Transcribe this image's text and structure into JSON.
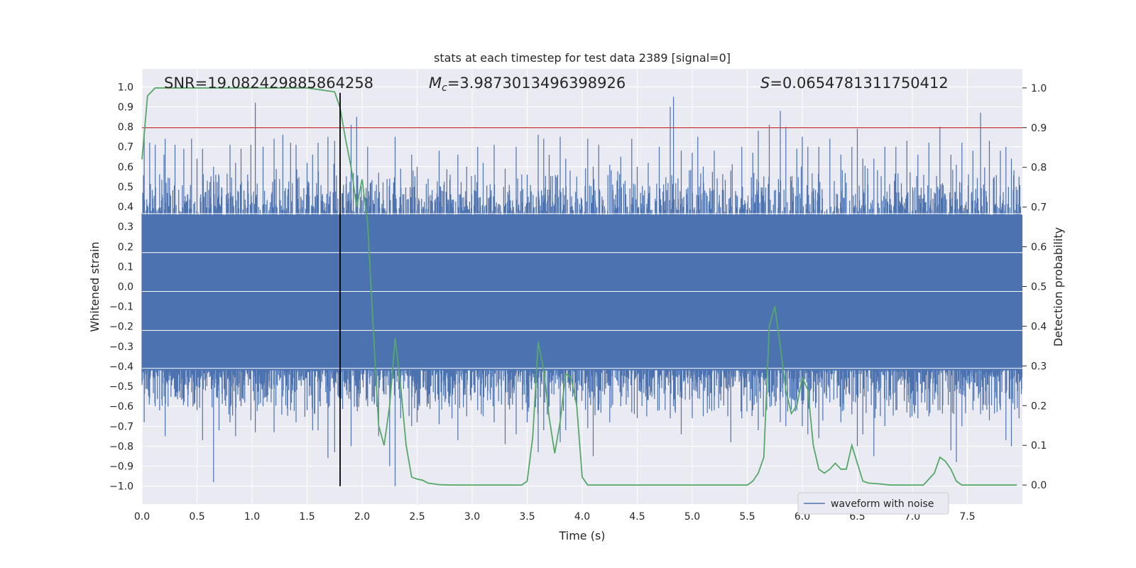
{
  "chart_data": {
    "type": "line",
    "title": "stats at each timestep for test data 2389 [signal=0]",
    "xlabel": "Time (s)",
    "ylabel": "Whitened strain",
    "y2label": "Detection probability",
    "xlim": [
      0.0,
      8.0
    ],
    "ylim": [
      -1.09,
      1.09
    ],
    "y2lim": [
      -0.048,
      1.048
    ],
    "x_ticks": [
      "0.0",
      "0.5",
      "1.0",
      "1.5",
      "2.0",
      "2.5",
      "3.0",
      "3.5",
      "4.0",
      "4.5",
      "5.0",
      "5.5",
      "6.0",
      "6.5",
      "7.0",
      "7.5"
    ],
    "y_ticks": [
      "1.0",
      "0.9",
      "0.8",
      "0.7",
      "0.6",
      "0.5",
      "0.4",
      "0.3",
      "0.2",
      "0.1",
      "0.0",
      "−0.1",
      "−0.2",
      "−0.3",
      "−0.4",
      "−0.5",
      "−0.6",
      "−0.7",
      "−0.8",
      "−0.9",
      "−1.0"
    ],
    "y2_ticks": [
      "1.0",
      "0.9",
      "0.8",
      "0.7",
      "0.6",
      "0.5",
      "0.4",
      "0.3",
      "0.2",
      "0.1",
      "0.0"
    ],
    "grid": true,
    "legend_position": "lower-right",
    "annotations": {
      "snr": "SNR=19.082429885864258",
      "mc_symbol": "M",
      "mc_subscript": "c",
      "mc_value": "=3.9873013496398926",
      "s_symbol": "S",
      "s_value": "=0.0654781311750412"
    },
    "series": [
      {
        "name": "waveform with noise",
        "axis": "left",
        "color": "#4c72b0",
        "envelope_peaks": [
          [
            0.02,
            0.76,
            -0.68
          ],
          [
            0.07,
            0.72,
            -0.56
          ],
          [
            0.12,
            0.71,
            -0.6
          ],
          [
            0.2,
            0.66,
            -0.55
          ],
          [
            0.21,
            0.74,
            -0.75
          ],
          [
            0.3,
            0.71,
            -0.5
          ],
          [
            0.38,
            0.69,
            -0.57
          ],
          [
            0.45,
            0.74,
            -0.53
          ],
          [
            0.5,
            0.64,
            -0.62
          ],
          [
            0.55,
            0.69,
            -0.77
          ],
          [
            0.65,
            0.6,
            -0.98
          ],
          [
            0.7,
            0.55,
            -0.72
          ],
          [
            0.8,
            0.71,
            -0.68
          ],
          [
            0.85,
            0.62,
            -0.75
          ],
          [
            0.9,
            0.69,
            -0.6
          ],
          [
            0.99,
            0.71,
            -0.67
          ],
          [
            1.03,
            0.92,
            -0.73
          ],
          [
            1.1,
            0.7,
            -0.6
          ],
          [
            1.2,
            0.74,
            -0.73
          ],
          [
            1.28,
            0.76,
            -0.55
          ],
          [
            1.35,
            0.72,
            -0.62
          ],
          [
            1.4,
            0.71,
            -0.68
          ],
          [
            1.5,
            0.62,
            -0.62
          ],
          [
            1.55,
            0.66,
            -0.72
          ],
          [
            1.6,
            0.72,
            -0.72
          ],
          [
            1.69,
            0.75,
            -0.86
          ],
          [
            1.75,
            0.73,
            -0.83
          ],
          [
            1.8,
            0.8,
            -0.9
          ],
          [
            1.9,
            0.81,
            -0.8
          ],
          [
            1.95,
            0.85,
            -0.6
          ],
          [
            2.05,
            0.7,
            -0.6
          ],
          [
            2.15,
            0.57,
            -0.75
          ],
          [
            2.25,
            0.54,
            -0.9
          ],
          [
            2.3,
            0.75,
            -1.0
          ],
          [
            2.35,
            0.59,
            -0.66
          ],
          [
            2.45,
            0.66,
            -0.7
          ],
          [
            2.5,
            0.6,
            -0.68
          ],
          [
            2.6,
            0.54,
            -0.55
          ],
          [
            2.7,
            0.68,
            -0.69
          ],
          [
            2.8,
            0.56,
            -0.55
          ],
          [
            2.87,
            0.66,
            -0.77
          ],
          [
            2.95,
            0.6,
            -0.65
          ],
          [
            3.05,
            0.7,
            -0.62
          ],
          [
            3.1,
            0.62,
            -0.65
          ],
          [
            3.2,
            0.71,
            -0.68
          ],
          [
            3.3,
            0.59,
            -0.79
          ],
          [
            3.4,
            0.7,
            -0.74
          ],
          [
            3.5,
            0.56,
            -0.68
          ],
          [
            3.6,
            0.76,
            -0.83
          ],
          [
            3.65,
            0.74,
            -0.72
          ],
          [
            3.7,
            0.66,
            -0.6
          ],
          [
            3.8,
            0.75,
            -0.78
          ],
          [
            3.85,
            0.64,
            -0.72
          ],
          [
            3.95,
            0.55,
            -0.6
          ],
          [
            4.05,
            0.74,
            -0.71
          ],
          [
            4.1,
            0.6,
            -0.85
          ],
          [
            4.15,
            0.71,
            -0.62
          ],
          [
            4.25,
            0.61,
            -0.68
          ],
          [
            4.35,
            0.65,
            -0.6
          ],
          [
            4.45,
            0.74,
            -0.63
          ],
          [
            4.5,
            0.6,
            -0.66
          ],
          [
            4.6,
            0.62,
            -0.57
          ],
          [
            4.7,
            0.7,
            -0.62
          ],
          [
            4.8,
            0.9,
            -0.66
          ],
          [
            4.83,
            0.95,
            -0.6
          ],
          [
            4.9,
            0.68,
            -0.74
          ],
          [
            5.0,
            0.67,
            -0.66
          ],
          [
            5.05,
            0.75,
            -0.56
          ],
          [
            5.1,
            0.6,
            -0.65
          ],
          [
            5.2,
            0.68,
            -0.62
          ],
          [
            5.35,
            0.58,
            -0.78
          ],
          [
            5.45,
            0.7,
            -0.66
          ],
          [
            5.55,
            0.67,
            -0.62
          ],
          [
            5.6,
            0.78,
            -0.72
          ],
          [
            5.7,
            0.81,
            -0.55
          ],
          [
            5.8,
            0.88,
            -0.68
          ],
          [
            5.85,
            0.8,
            -0.7
          ],
          [
            5.95,
            0.69,
            -0.62
          ],
          [
            6.0,
            0.75,
            -0.7
          ],
          [
            6.05,
            0.7,
            -0.74
          ],
          [
            6.15,
            0.7,
            -0.76
          ],
          [
            6.25,
            0.74,
            -0.58
          ],
          [
            6.35,
            0.66,
            -0.68
          ],
          [
            6.45,
            0.7,
            -0.64
          ],
          [
            6.5,
            0.79,
            -0.8
          ],
          [
            6.55,
            0.64,
            -0.74
          ],
          [
            6.65,
            0.64,
            -0.85
          ],
          [
            6.75,
            0.7,
            -0.7
          ],
          [
            6.85,
            0.7,
            -0.62
          ],
          [
            6.95,
            0.73,
            -0.63
          ],
          [
            7.05,
            0.66,
            -0.66
          ],
          [
            7.15,
            0.72,
            -0.65
          ],
          [
            7.25,
            0.8,
            -0.62
          ],
          [
            7.35,
            0.66,
            -0.82
          ],
          [
            7.4,
            0.61,
            -0.88
          ],
          [
            7.45,
            0.72,
            -0.7
          ],
          [
            7.55,
            0.68,
            -0.62
          ],
          [
            7.62,
            0.87,
            -0.64
          ],
          [
            7.7,
            0.73,
            -0.67
          ],
          [
            7.8,
            0.68,
            -0.62
          ],
          [
            7.85,
            0.7,
            -0.77
          ],
          [
            7.9,
            0.64,
            -0.8
          ],
          [
            7.97,
            0.55,
            -0.66
          ]
        ]
      },
      {
        "axis": "right",
        "color": "#55a868",
        "x": [
          0.0,
          0.05,
          0.12,
          0.2,
          0.5,
          1.0,
          1.5,
          1.75,
          1.8,
          1.85,
          1.9,
          1.95,
          2.0,
          2.05,
          2.1,
          2.15,
          2.2,
          2.25,
          2.3,
          2.35,
          2.4,
          2.45,
          2.5,
          2.55,
          2.6,
          2.7,
          2.8,
          3.0,
          3.2,
          3.4,
          3.45,
          3.5,
          3.55,
          3.6,
          3.65,
          3.7,
          3.75,
          3.8,
          3.85,
          3.9,
          3.95,
          4.0,
          4.05,
          4.2,
          4.5,
          4.8,
          5.0,
          5.3,
          5.5,
          5.55,
          5.6,
          5.65,
          5.7,
          5.75,
          5.8,
          5.85,
          5.9,
          5.95,
          6.0,
          6.05,
          6.1,
          6.15,
          6.2,
          6.25,
          6.3,
          6.35,
          6.4,
          6.45,
          6.5,
          6.55,
          6.6,
          6.7,
          6.8,
          6.9,
          7.0,
          7.1,
          7.2,
          7.25,
          7.3,
          7.35,
          7.4,
          7.45,
          7.5,
          7.6,
          7.7,
          7.8,
          7.95
        ],
        "values": [
          0.82,
          0.98,
          1.0,
          1.0,
          1.0,
          1.0,
          1.0,
          0.99,
          0.95,
          0.87,
          0.8,
          0.7,
          0.77,
          0.66,
          0.4,
          0.15,
          0.1,
          0.2,
          0.37,
          0.25,
          0.1,
          0.02,
          0.015,
          0.012,
          0.005,
          0.001,
          0.0,
          0.0,
          0.0,
          0.0,
          0.0,
          0.01,
          0.12,
          0.36,
          0.29,
          0.17,
          0.08,
          0.16,
          0.28,
          0.27,
          0.2,
          0.02,
          0.0,
          0.0,
          0.0,
          0.0,
          0.0,
          0.0,
          0.0,
          0.01,
          0.03,
          0.07,
          0.4,
          0.45,
          0.35,
          0.24,
          0.18,
          0.2,
          0.27,
          0.24,
          0.1,
          0.04,
          0.03,
          0.04,
          0.055,
          0.04,
          0.04,
          0.1,
          0.055,
          0.01,
          0.005,
          0.003,
          0.0,
          0.0,
          0.0,
          0.0,
          0.03,
          0.07,
          0.06,
          0.04,
          0.01,
          0.0,
          0.0,
          0.0,
          0.0,
          0.0,
          0.0
        ]
      }
    ],
    "threshold_line": {
      "axis": "right",
      "value": 0.9,
      "color": "#c44e52"
    },
    "vertical_line": {
      "x": 1.8,
      "y_from": -1.0,
      "y_to": 0.97,
      "color": "#000000"
    },
    "noise_band_lines": [
      0.365,
      0.17,
      -0.025,
      -0.22,
      -0.41
    ],
    "colors": {
      "panel_bg": "#eaeaf2",
      "grid": "#ffffff",
      "text": "#262626",
      "legend_bg": "#eaeaf2",
      "legend_edge": "#cccccc"
    }
  }
}
